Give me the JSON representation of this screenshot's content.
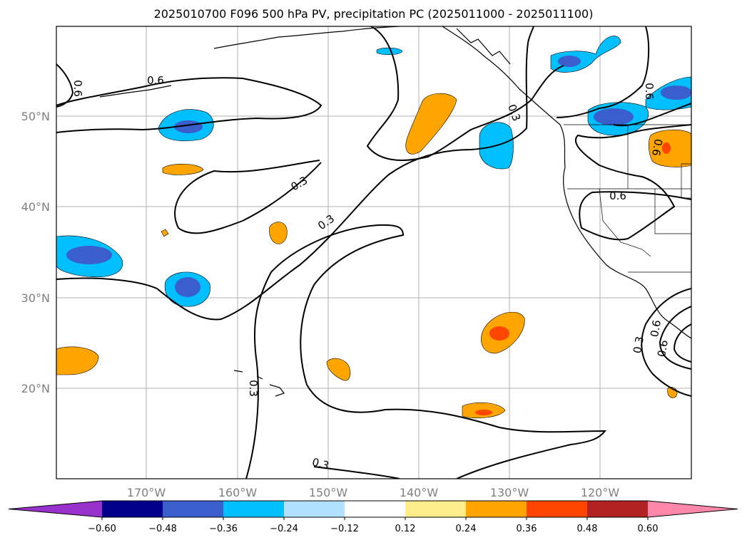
{
  "title": "2025010700 F096 500 hPa PV, precipitation PC (2025011000 - 2025011100)",
  "lat_labels": [
    "50°N",
    "40°N",
    "30°N",
    "20°N"
  ],
  "lon_labels": [
    "170°W",
    "160°W",
    "150°W",
    "140°W",
    "130°W",
    "120°W"
  ],
  "contour_labels": [
    "0.6",
    "0.6",
    "0.3",
    "0.6",
    "0.3",
    "0.3",
    "0.6",
    "0.6",
    "0.3",
    "0.6",
    "0.6",
    "0.3",
    "0.3"
  ],
  "colorbar": {
    "ticks": [
      "−0.60",
      "−0.48",
      "−0.36",
      "−0.24",
      "−0.12",
      "0.12",
      "0.24",
      "0.36",
      "0.48",
      "0.60"
    ],
    "colors": [
      "#9932CC",
      "#00008B",
      "#3A5FCD",
      "#00BFFF",
      "#B0E2FF",
      "#FFFFFF",
      "#FFEC8B",
      "#FFA500",
      "#FF4500",
      "#B22222",
      "#FF88AA"
    ]
  }
}
